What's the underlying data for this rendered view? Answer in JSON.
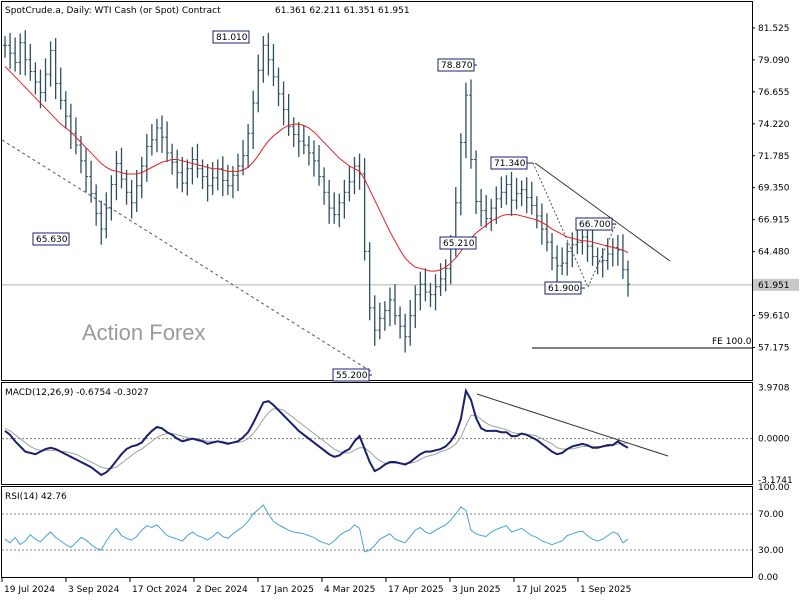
{
  "header": {
    "symbol": "SpotCrude.a, Daily:  WTI Cash (or Spot) Contract",
    "ohlc": "61.361 62.211 61.351 61.951"
  },
  "watermark": "Action Forex",
  "colors": {
    "bars": "#2f4f5f",
    "ma": "#e02020",
    "macd": "#1a1f6e",
    "signal": "#a0a0a0",
    "rsi": "#4aa3d8",
    "grid": "#808080",
    "label_border": "#1a1f6e"
  },
  "chart_data": [
    {
      "type": "line",
      "panel": "price",
      "y_ticks": [
        "81.525",
        "79.090",
        "76.655",
        "74.220",
        "71.785",
        "69.350",
        "66.915",
        "64.480",
        "62.045",
        "59.610",
        "57.175"
      ],
      "ylim": [
        54.7,
        83.5
      ],
      "x_ticks": [
        "19 Jul 2024",
        "3 Sep 2024",
        "17 Oct 2024",
        "2 Dec 2024",
        "17 Jan 2025",
        "4 Mar 2025",
        "17 Apr 2025",
        "3 Jun 2025",
        "17 Jul 2025",
        "1 Sep 2025"
      ],
      "current_price": "61.951",
      "annotations": [
        "81.010",
        "78.870",
        "71.340",
        "66.700",
        "65.630",
        "65.210",
        "61.900",
        "55.200",
        "FE 100.0"
      ],
      "series": [
        {
          "values": [
            80.2,
            79.6,
            78.9,
            80.4,
            79.1,
            78.2,
            77.4,
            76.6,
            78.0,
            79.8,
            77.3,
            76.0,
            74.8,
            73.5,
            72.6,
            71.4,
            70.2,
            68.9,
            67.4,
            66.2,
            67.8,
            69.6,
            71.2,
            70.0,
            69.0,
            68.2,
            69.5,
            71.0,
            72.5,
            73.0,
            73.9,
            73.2,
            72.0,
            71.3,
            70.5,
            69.7,
            70.8,
            71.5,
            70.8,
            70.2,
            69.5,
            70.1,
            70.8,
            69.9,
            69.5,
            70.3,
            71.0,
            71.8,
            73.5,
            75.8,
            78.3,
            80.2,
            79.1,
            77.8,
            76.5,
            75.3,
            74.0,
            73.4,
            72.9,
            72.6,
            72.0,
            71.4,
            70.2,
            69.0,
            67.8,
            67.3,
            68.2,
            69.0,
            69.8,
            71.0,
            70.4,
            64.5,
            60.2,
            58.5,
            59.4,
            60.0,
            60.8,
            59.6,
            58.8,
            58.0,
            59.6,
            61.2,
            62.0,
            61.4,
            61.2,
            61.8,
            62.4,
            63.2,
            64.8,
            68.2,
            72.8,
            76.4,
            71.5,
            68.3,
            67.6,
            67.0,
            67.8,
            68.5,
            69.0,
            69.6,
            68.4,
            68.9,
            69.2,
            68.6,
            68.0,
            67.2,
            66.2,
            65.2,
            64.0,
            63.4,
            63.6,
            64.5,
            65.0,
            65.2,
            65.6,
            64.9,
            64.1,
            63.7,
            63.8,
            64.3,
            64.8,
            64.6,
            63.1,
            62.0
          ],
          "name": ""
        },
        {
          "values": [
            78.6,
            78.2,
            77.8,
            77.4,
            77.0,
            76.6,
            76.2,
            75.8,
            75.4,
            75.0,
            74.6,
            74.2,
            73.9,
            73.6,
            73.2,
            72.8,
            72.4,
            72.0,
            71.6,
            71.2,
            70.9,
            70.7,
            70.6,
            70.5,
            70.4,
            70.4,
            70.4,
            70.5,
            70.7,
            70.9,
            71.1,
            71.3,
            71.4,
            71.5,
            71.5,
            71.4,
            71.3,
            71.2,
            71.1,
            71.0,
            70.9,
            70.8,
            70.8,
            70.7,
            70.6,
            70.6,
            70.6,
            70.7,
            70.9,
            71.3,
            71.8,
            72.4,
            72.9,
            73.3,
            73.6,
            73.9,
            74.1,
            74.2,
            74.2,
            74.1,
            73.9,
            73.6,
            73.2,
            72.8,
            72.4,
            72.0,
            71.6,
            71.3,
            71.0,
            70.8,
            70.6,
            70.0,
            69.2,
            68.4,
            67.6,
            66.8,
            66.0,
            65.3,
            64.6,
            64.0,
            63.6,
            63.3,
            63.2,
            63.1,
            63.0,
            63.0,
            63.1,
            63.3,
            63.6,
            64.0,
            64.5,
            65.1,
            65.5,
            65.9,
            66.2,
            66.5,
            66.8,
            67.0,
            67.2,
            67.3,
            67.3,
            67.3,
            67.2,
            67.1,
            67.0,
            66.9,
            66.7,
            66.5,
            66.2,
            66.0,
            65.8,
            65.6,
            65.5,
            65.4,
            65.3,
            65.3,
            65.2,
            65.1,
            65.0,
            64.9,
            64.8,
            64.7,
            64.6,
            64.4
          ],
          "name": ""
        }
      ]
    },
    {
      "type": "line",
      "panel": "macd",
      "label": "MACD(12,26,9) -0.6754 -0.3027",
      "y_ticks": [
        "3.9708",
        "0.0000",
        "-3.1741"
      ],
      "ylim": [
        -3.5,
        4.3
      ],
      "series": [
        {
          "values": [
            0.6,
            0.3,
            -0.2,
            -0.6,
            -1.0,
            -1.1,
            -1.2,
            -1.0,
            -0.8,
            -0.7,
            -0.8,
            -1.0,
            -1.2,
            -1.4,
            -1.6,
            -1.8,
            -2.0,
            -2.2,
            -2.5,
            -2.8,
            -2.6,
            -2.2,
            -1.7,
            -1.2,
            -0.8,
            -0.6,
            -0.5,
            -0.3,
            0.2,
            0.6,
            0.9,
            0.8,
            0.5,
            0.3,
            0.0,
            -0.2,
            -0.1,
            0.0,
            -0.1,
            -0.2,
            -0.4,
            -0.3,
            -0.2,
            -0.3,
            -0.4,
            -0.3,
            -0.2,
            0.1,
            0.5,
            1.2,
            2.0,
            2.8,
            2.9,
            2.6,
            2.2,
            1.8,
            1.4,
            1.0,
            0.6,
            0.3,
            0.0,
            -0.3,
            -0.6,
            -0.9,
            -1.2,
            -1.4,
            -1.3,
            -1.0,
            -0.8,
            -0.2,
            0.2,
            -0.8,
            -1.8,
            -2.5,
            -2.3,
            -2.0,
            -1.8,
            -1.8,
            -1.9,
            -2.0,
            -1.8,
            -1.5,
            -1.2,
            -1.0,
            -1.0,
            -0.9,
            -0.8,
            -0.6,
            -0.2,
            0.4,
            1.5,
            3.7,
            3.0,
            1.6,
            0.8,
            0.6,
            0.6,
            0.6,
            0.5,
            0.5,
            0.2,
            0.2,
            0.4,
            0.3,
            0.1,
            -0.1,
            -0.4,
            -0.7,
            -1.0,
            -1.2,
            -1.1,
            -0.8,
            -0.6,
            -0.5,
            -0.4,
            -0.5,
            -0.7,
            -0.7,
            -0.6,
            -0.5,
            -0.5,
            -0.2,
            -0.5,
            -0.7
          ],
          "name": ""
        },
        {
          "values": [
            0.8,
            0.6,
            0.3,
            0.0,
            -0.3,
            -0.6,
            -0.8,
            -0.9,
            -0.9,
            -0.9,
            -0.9,
            -1.0,
            -1.0,
            -1.1,
            -1.2,
            -1.4,
            -1.6,
            -1.8,
            -2.0,
            -2.2,
            -2.3,
            -2.3,
            -2.2,
            -1.9,
            -1.6,
            -1.3,
            -1.0,
            -0.8,
            -0.5,
            -0.2,
            0.1,
            0.3,
            0.4,
            0.4,
            0.3,
            0.2,
            0.1,
            0.0,
            0.0,
            -0.1,
            -0.2,
            -0.2,
            -0.2,
            -0.2,
            -0.3,
            -0.3,
            -0.3,
            -0.2,
            0.0,
            0.4,
            0.9,
            1.5,
            2.0,
            2.3,
            2.3,
            2.2,
            1.9,
            1.6,
            1.3,
            1.0,
            0.7,
            0.4,
            0.1,
            -0.2,
            -0.5,
            -0.8,
            -1.0,
            -1.1,
            -1.1,
            -0.9,
            -0.7,
            -0.7,
            -1.0,
            -1.4,
            -1.7,
            -1.9,
            -1.9,
            -1.9,
            -1.9,
            -1.9,
            -1.9,
            -1.8,
            -1.6,
            -1.4,
            -1.3,
            -1.2,
            -1.0,
            -0.9,
            -0.7,
            -0.4,
            0.1,
            1.0,
            1.8,
            1.8,
            1.5,
            1.2,
            1.0,
            0.9,
            0.8,
            0.7,
            0.5,
            0.4,
            0.4,
            0.3,
            0.3,
            0.2,
            0.0,
            -0.2,
            -0.4,
            -0.7,
            -0.8,
            -0.8,
            -0.8,
            -0.7,
            -0.6,
            -0.6,
            -0.6,
            -0.6,
            -0.6,
            -0.6,
            -0.5,
            -0.4,
            -0.4,
            -0.3
          ],
          "name": ""
        }
      ]
    },
    {
      "type": "line",
      "panel": "rsi",
      "label": "RSI(14) 42.76",
      "y_ticks": [
        "100.00",
        "70.00",
        "30.00",
        "0.00"
      ],
      "ylim": [
        0,
        100
      ],
      "levels": [
        70,
        30
      ],
      "series": [
        {
          "values": [
            42,
            38,
            44,
            36,
            40,
            47,
            42,
            39,
            45,
            50,
            44,
            40,
            36,
            33,
            38,
            44,
            41,
            36,
            32,
            30,
            40,
            48,
            54,
            46,
            43,
            41,
            45,
            52,
            57,
            55,
            58,
            52,
            46,
            44,
            42,
            40,
            46,
            50,
            46,
            44,
            41,
            45,
            50,
            45,
            43,
            48,
            52,
            56,
            62,
            70,
            75,
            80,
            70,
            62,
            58,
            55,
            52,
            50,
            49,
            48,
            46,
            44,
            40,
            38,
            36,
            40,
            46,
            50,
            52,
            58,
            54,
            28,
            30,
            35,
            42,
            45,
            48,
            42,
            40,
            38,
            45,
            52,
            55,
            50,
            48,
            52,
            55,
            58,
            63,
            70,
            78,
            74,
            52,
            48,
            46,
            45,
            50,
            53,
            55,
            57,
            50,
            52,
            54,
            50,
            46,
            44,
            40,
            38,
            36,
            38,
            40,
            46,
            48,
            50,
            51,
            46,
            42,
            40,
            42,
            46,
            50,
            48,
            38,
            42
          ],
          "name": ""
        }
      ]
    }
  ]
}
